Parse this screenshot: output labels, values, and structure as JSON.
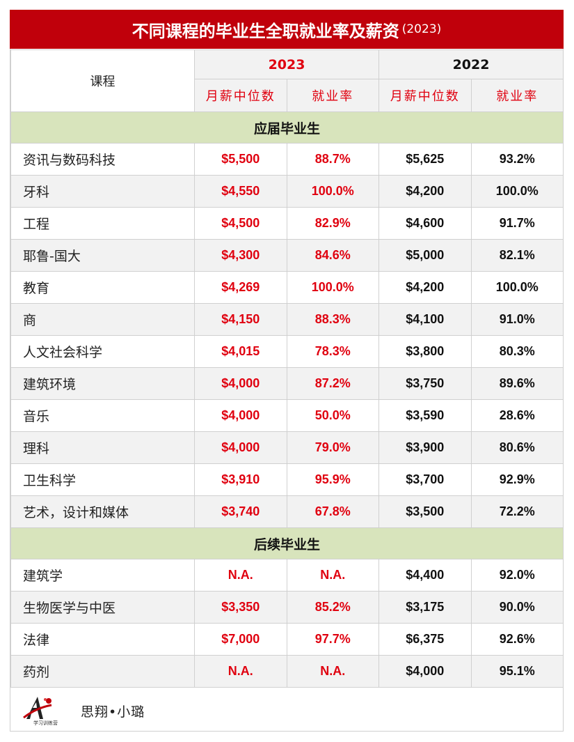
{
  "title": {
    "main": "不同课程的毕业生全职就业率及薪资",
    "year": "(2023)"
  },
  "header": {
    "course": "课程",
    "year_2023": "2023",
    "year_2022": "2022",
    "median_salary": "月薪中位数",
    "employment_rate": "就业率"
  },
  "sections": [
    {
      "label": "应届毕业生",
      "rows": [
        {
          "course": "资讯与数码科技",
          "s2023": "$5,500",
          "r2023": "88.7%",
          "s2022": "$5,625",
          "r2022": "93.2%"
        },
        {
          "course": "牙科",
          "s2023": "$4,550",
          "r2023": "100.0%",
          "s2022": "$4,200",
          "r2022": "100.0%"
        },
        {
          "course": "工程",
          "s2023": "$4,500",
          "r2023": "82.9%",
          "s2022": "$4,600",
          "r2022": "91.7%"
        },
        {
          "course": "耶鲁-国大",
          "s2023": "$4,300",
          "r2023": "84.6%",
          "s2022": "$5,000",
          "r2022": "82.1%"
        },
        {
          "course": "教育",
          "s2023": "$4,269",
          "r2023": "100.0%",
          "s2022": "$4,200",
          "r2022": "100.0%"
        },
        {
          "course": "商",
          "s2023": "$4,150",
          "r2023": "88.3%",
          "s2022": "$4,100",
          "r2022": "91.0%"
        },
        {
          "course": "人文社会科学",
          "s2023": "$4,015",
          "r2023": "78.3%",
          "s2022": "$3,800",
          "r2022": "80.3%"
        },
        {
          "course": "建筑环境",
          "s2023": "$4,000",
          "r2023": "87.2%",
          "s2022": "$3,750",
          "r2022": "89.6%"
        },
        {
          "course": "音乐",
          "s2023": "$4,000",
          "r2023": "50.0%",
          "s2022": "$3,590",
          "r2022": "28.6%"
        },
        {
          "course": "理科",
          "s2023": "$4,000",
          "r2023": "79.0%",
          "s2022": "$3,900",
          "r2022": "80.6%"
        },
        {
          "course": "卫生科学",
          "s2023": "$3,910",
          "r2023": "95.9%",
          "s2022": "$3,700",
          "r2022": "92.9%"
        },
        {
          "course": "艺术，设计和媒体",
          "s2023": "$3,740",
          "r2023": "67.8%",
          "s2022": "$3,500",
          "r2022": "72.2%"
        }
      ]
    },
    {
      "label": "后续毕业生",
      "rows": [
        {
          "course": "建筑学",
          "s2023": "N.A.",
          "r2023": "N.A.",
          "s2022": "$4,400",
          "r2022": "92.0%"
        },
        {
          "course": "生物医学与中医",
          "s2023": "$3,350",
          "r2023": "85.2%",
          "s2022": "$3,175",
          "r2022": "90.0%"
        },
        {
          "course": "法律",
          "s2023": "$7,000",
          "r2023": "97.7%",
          "s2022": "$6,375",
          "r2022": "92.6%"
        },
        {
          "course": "药剂",
          "s2023": "N.A.",
          "r2023": "N.A.",
          "s2022": "$4,000",
          "r2022": "95.1%"
        }
      ]
    }
  ],
  "footer": {
    "brand": "思翔•小璐",
    "logo_caption": "学习训练营"
  },
  "colors": {
    "title_bg": "#c0000b",
    "accent_red": "#e0000f",
    "section_bg": "#d8e4bc",
    "header_bg": "#f2f2f2"
  }
}
